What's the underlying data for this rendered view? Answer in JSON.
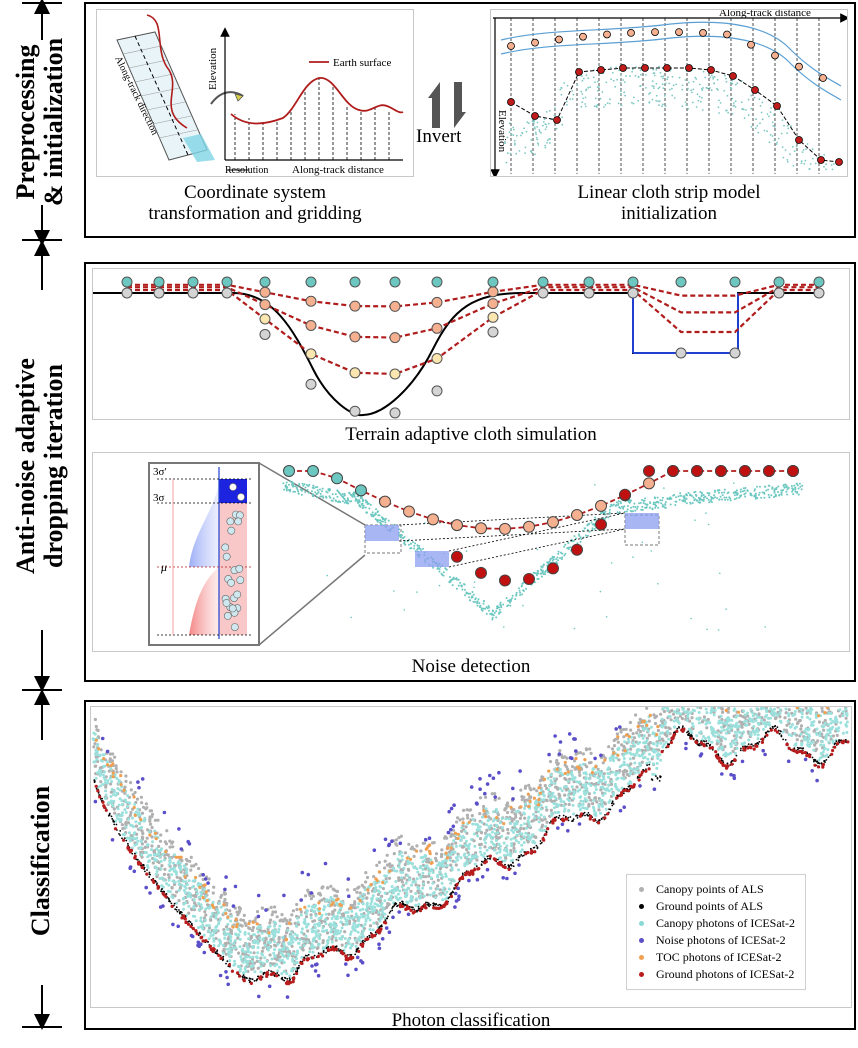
{
  "sections": {
    "preprocessing": "Preprocessing & initialization",
    "preprocessing_line1": "Preprocessing",
    "preprocessing_line2": "& initialization",
    "anti_noise_line1": "Anti-noise adaptive",
    "anti_noise_line2": "dropping iteration",
    "classification": "Classification"
  },
  "panel1": {
    "left_caption_line1": "Coordinate system",
    "left_caption_line2": "transformation and gridding",
    "right_caption_line1": "Linear cloth strip model",
    "right_caption_line2": "initialization",
    "invert_label": "Invert",
    "left_diagram": {
      "along_track_direction": "Along-track direction",
      "elevation": "Elevation",
      "earth_surface": "Earth surface",
      "resolution": "Resolution",
      "along_track_distance": "Along-track distance"
    },
    "right_diagram": {
      "along_track_distance": "Along-track distance",
      "elevation": "Elevation"
    }
  },
  "panel2": {
    "terrain_caption": "Terrain adaptive cloth simulation",
    "noise_caption": "Noise detection",
    "inset_labels": {
      "three_sigma_prime": "3σ′",
      "three_sigma": "3σ",
      "mu": "μ"
    }
  },
  "panel3": {
    "caption": "Photon classification",
    "legend": [
      {
        "label": "Canopy points of ALS",
        "color": "#b0b0b0"
      },
      {
        "label": "Ground points of ALS",
        "color": "#000000"
      },
      {
        "label": "Canopy photons of ICESat-2",
        "color": "#88d8d4"
      },
      {
        "label": "Noise photons of ICESat-2",
        "color": "#5a4fc9"
      },
      {
        "label": "TOC photons of ICESat-2",
        "color": "#f0a050"
      },
      {
        "label": "Ground photons of ICESat-2",
        "color": "#b81c1c"
      }
    ]
  },
  "colors": {
    "cloth_red": "#b01c1c",
    "teal": "#6cc7c0",
    "salmon": "#f5b090",
    "blue_line": "#1f3fcf",
    "gray_ground": "#b0b0b0"
  }
}
